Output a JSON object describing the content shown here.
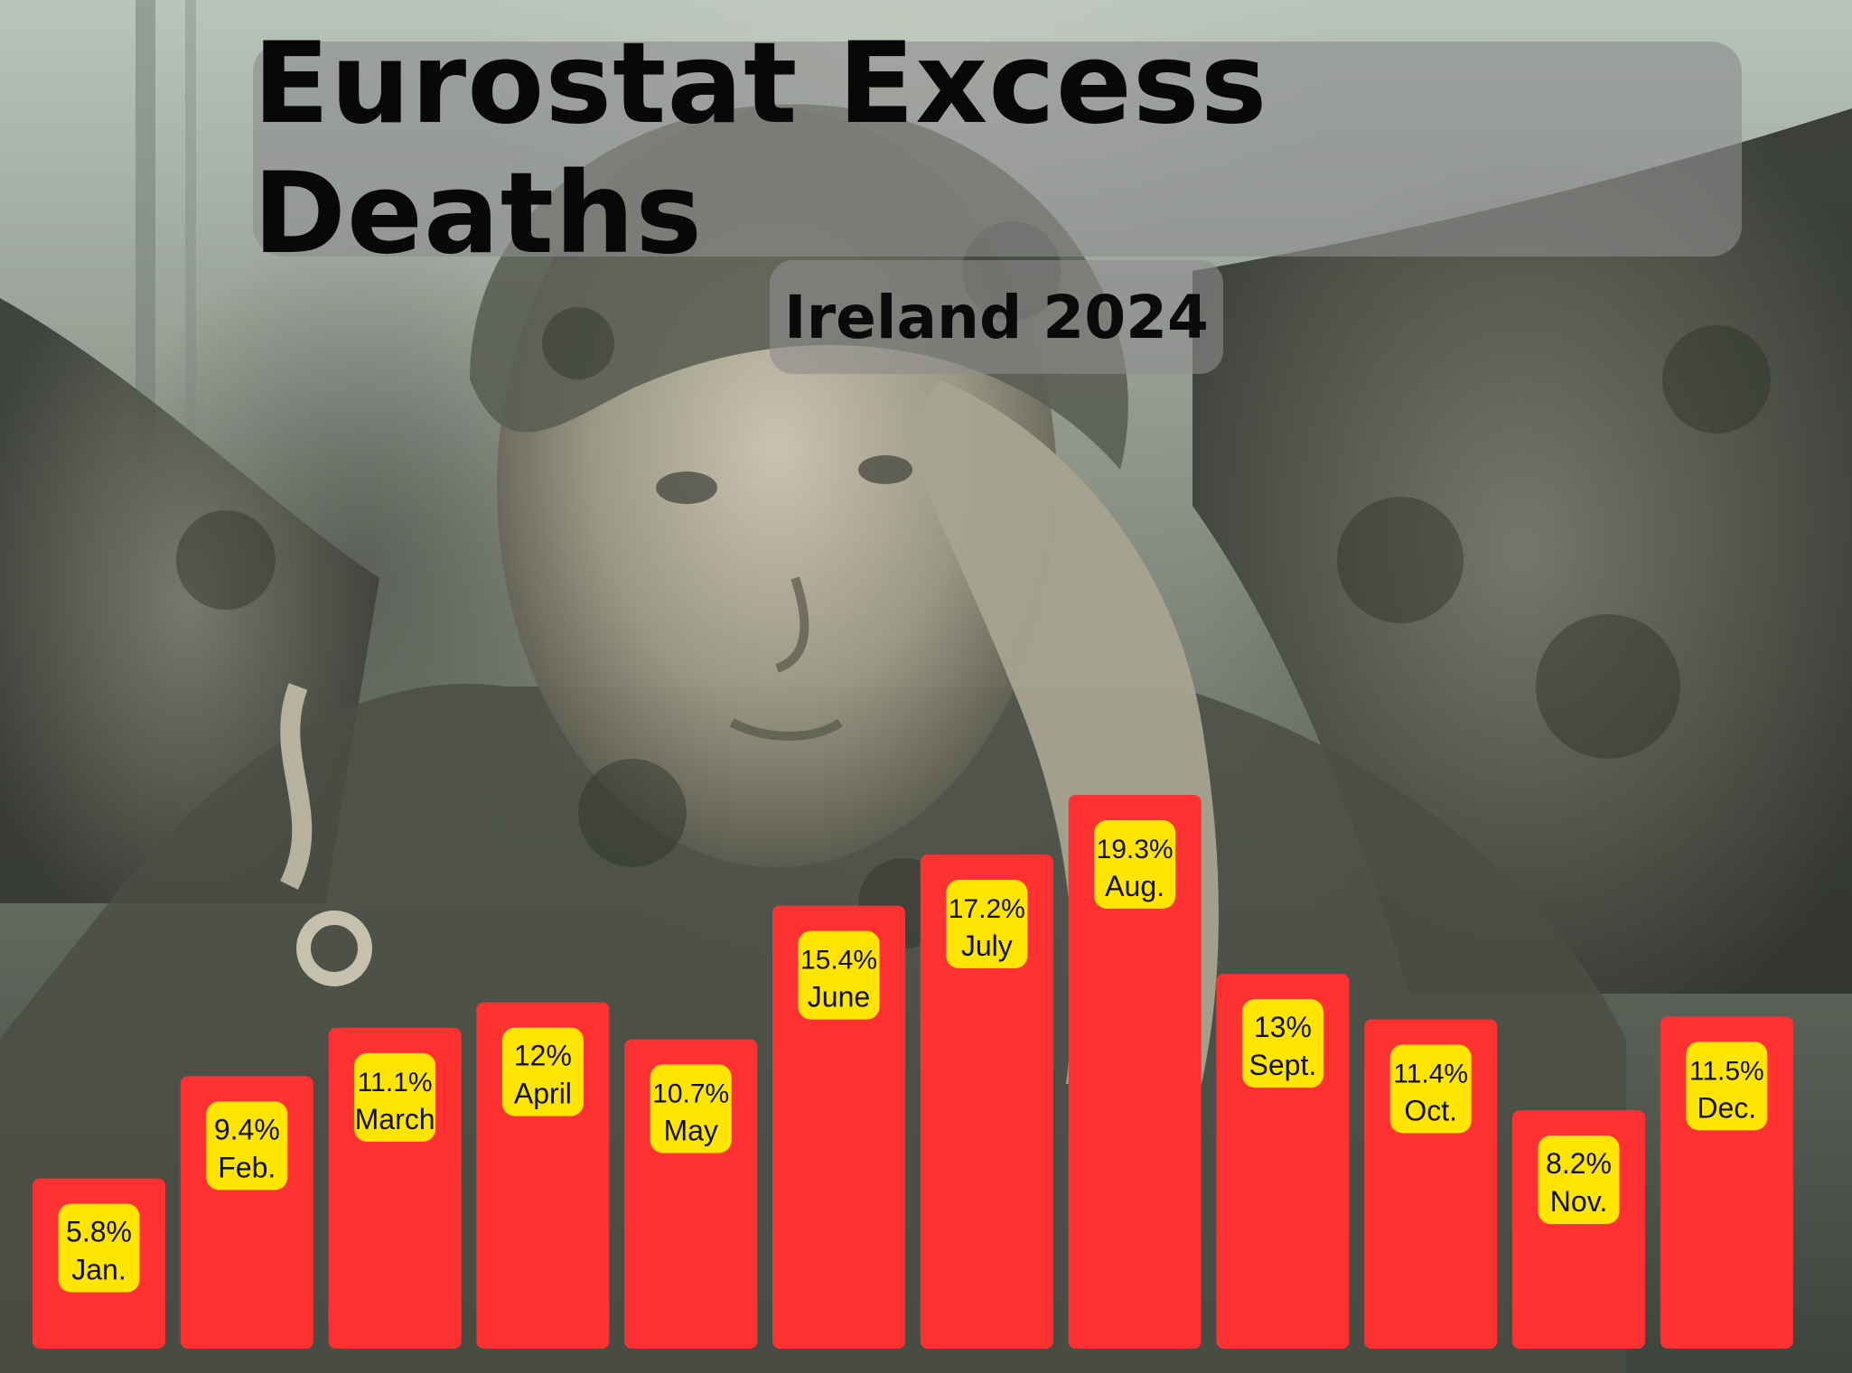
{
  "title": "Eurostat Excess Deaths",
  "subtitle": "Ireland 2024",
  "colors": {
    "bar": "#ff3131",
    "label_bg": "#ffe500",
    "text": "#111111"
  },
  "chart_data": {
    "type": "bar",
    "title": "Eurostat Excess Deaths",
    "subtitle": "Ireland 2024",
    "categories": [
      "Jan.",
      "Feb.",
      "March",
      "April",
      "May",
      "June",
      "July",
      "Aug.",
      "Sept.",
      "Oct.",
      "Nov.",
      "Dec."
    ],
    "values": [
      5.8,
      9.4,
      11.1,
      12,
      10.7,
      15.4,
      17.2,
      19.3,
      13,
      11.4,
      8.2,
      11.5
    ],
    "value_labels": [
      "5.8%",
      "9.4%",
      "11.1%",
      "12%",
      "10.7%",
      "15.4%",
      "17.2%",
      "19.3%",
      "13%",
      "11.4%",
      "8.2%",
      "11.5%"
    ],
    "unit": "%",
    "ylim": [
      0,
      19.3
    ],
    "xlabel": "",
    "ylabel": "",
    "grid": false,
    "legend": "none"
  }
}
